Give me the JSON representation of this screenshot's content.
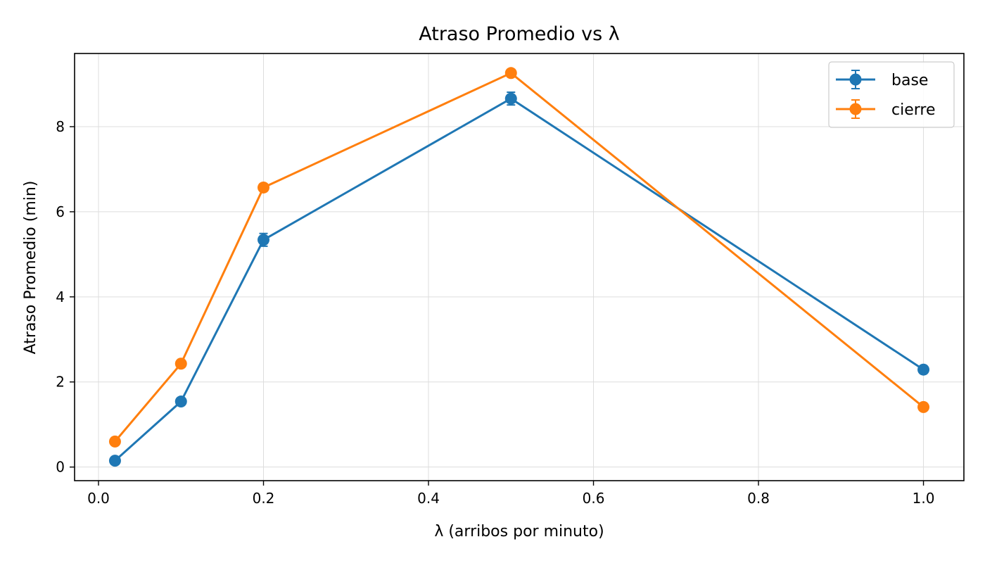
{
  "chart_data": {
    "type": "line",
    "title": "Atraso Promedio vs λ",
    "xlabel": "λ (arribos por minuto)",
    "ylabel": "Atraso Promedio (min)",
    "xlim": [
      -0.029,
      1.049
    ],
    "ylim": [
      -0.32,
      9.72
    ],
    "xticks": [
      0.0,
      0.2,
      0.4,
      0.6,
      0.8,
      1.0
    ],
    "xtick_labels": [
      "0.0",
      "0.2",
      "0.4",
      "0.6",
      "0.8",
      "1.0"
    ],
    "yticks": [
      0,
      2,
      4,
      6,
      8
    ],
    "ytick_labels": [
      "0",
      "2",
      "4",
      "6",
      "8"
    ],
    "grid": true,
    "legend_position": "top-right",
    "x": [
      0.02,
      0.1,
      0.2,
      0.5,
      1.0
    ],
    "series": [
      {
        "name": "base",
        "color": "#1f77b4",
        "values": [
          0.15,
          1.54,
          5.34,
          8.66,
          2.29
        ],
        "errors": [
          0.04,
          0.06,
          0.15,
          0.15,
          0.06
        ]
      },
      {
        "name": "cierre",
        "color": "#ff7f0e",
        "values": [
          0.6,
          2.43,
          6.57,
          9.26,
          1.41
        ],
        "errors": [
          0.03,
          0.05,
          0.06,
          0.06,
          0.04
        ]
      }
    ]
  }
}
